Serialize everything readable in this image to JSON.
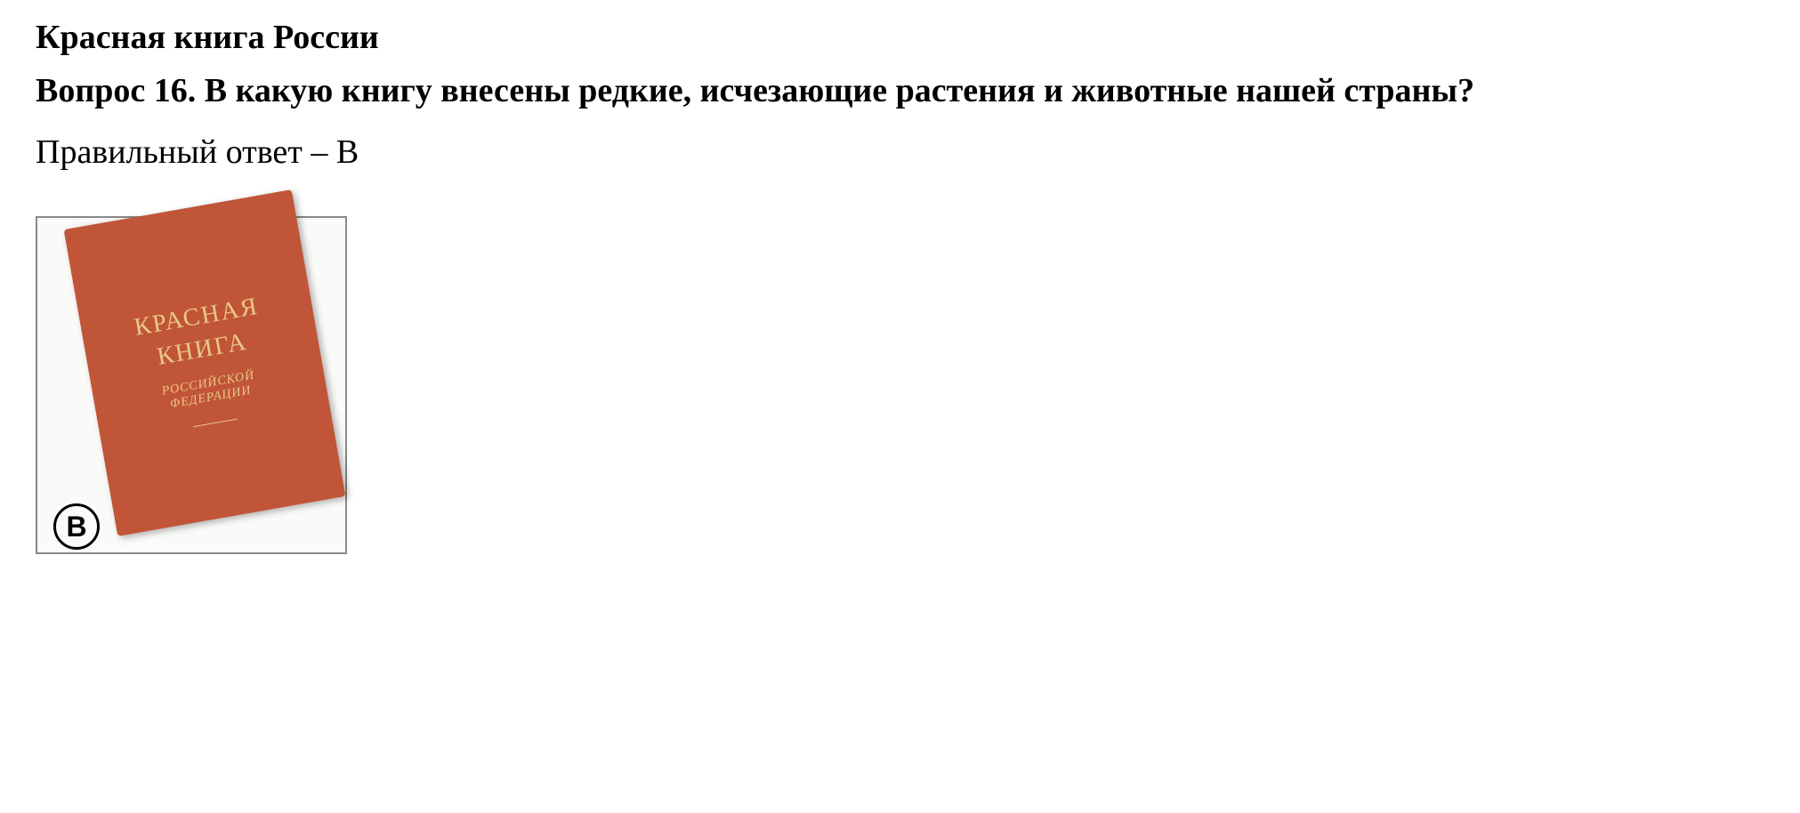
{
  "section_title": "Красная книга России",
  "question": {
    "number": "Вопрос 16.",
    "text": "В какую книгу внесены редкие, исчезающие растения и животные нашей страны?"
  },
  "answer": {
    "label": "Правильный ответ – В"
  },
  "option": {
    "letter": "В"
  },
  "book": {
    "title_line_1": "КРАСНАЯ",
    "title_line_2": "КНИГА",
    "subtitle_line_1": "РОССИЙСКОЙ",
    "subtitle_line_2": "ФЕДЕРАЦИИ",
    "cover_color": "#c15538",
    "text_color": "#e8c888"
  },
  "colors": {
    "background": "#ffffff",
    "text": "#000000",
    "border": "#888888"
  }
}
